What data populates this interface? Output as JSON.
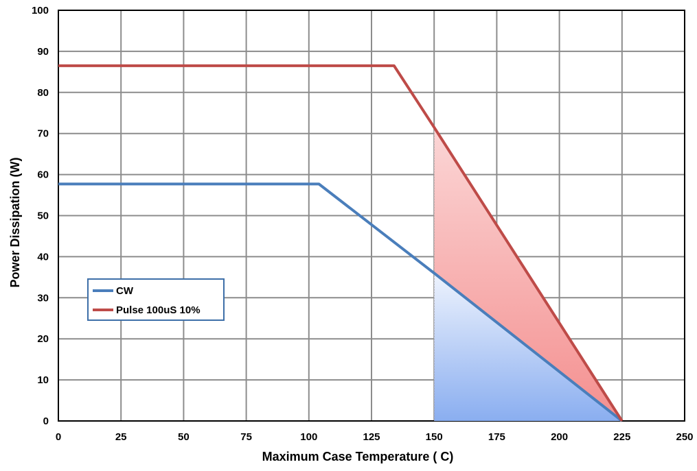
{
  "chart_data": {
    "type": "line",
    "xlabel": "Maximum Case Temperature ( C)",
    "ylabel": "Power Dissipation (W)",
    "xlim": [
      0,
      250
    ],
    "ylim": [
      0,
      100
    ],
    "x_ticks": [
      0,
      25,
      50,
      75,
      100,
      125,
      150,
      175,
      200,
      225,
      250
    ],
    "y_ticks": [
      0,
      10,
      20,
      30,
      40,
      50,
      60,
      70,
      80,
      90,
      100
    ],
    "grid": true,
    "legend_position": "lower-left",
    "series": [
      {
        "name": "CW",
        "color": "#4a7ebb",
        "x": [
          0,
          104,
          150,
          225
        ],
        "y": [
          57.7,
          57.7,
          36,
          0
        ]
      },
      {
        "name": "Pulse 100uS 10%",
        "color": "#be4b48",
        "x": [
          0,
          134,
          150,
          225
        ],
        "y": [
          86.5,
          86.5,
          71.5,
          0
        ]
      }
    ],
    "shaded_regions": [
      {
        "series": "Pulse 100uS 10%",
        "x_from": 150,
        "x_to": 225,
        "color": "#f5a0a0"
      },
      {
        "series": "CW",
        "x_from": 150,
        "x_to": 225,
        "color": "#8fb1f0"
      }
    ]
  }
}
